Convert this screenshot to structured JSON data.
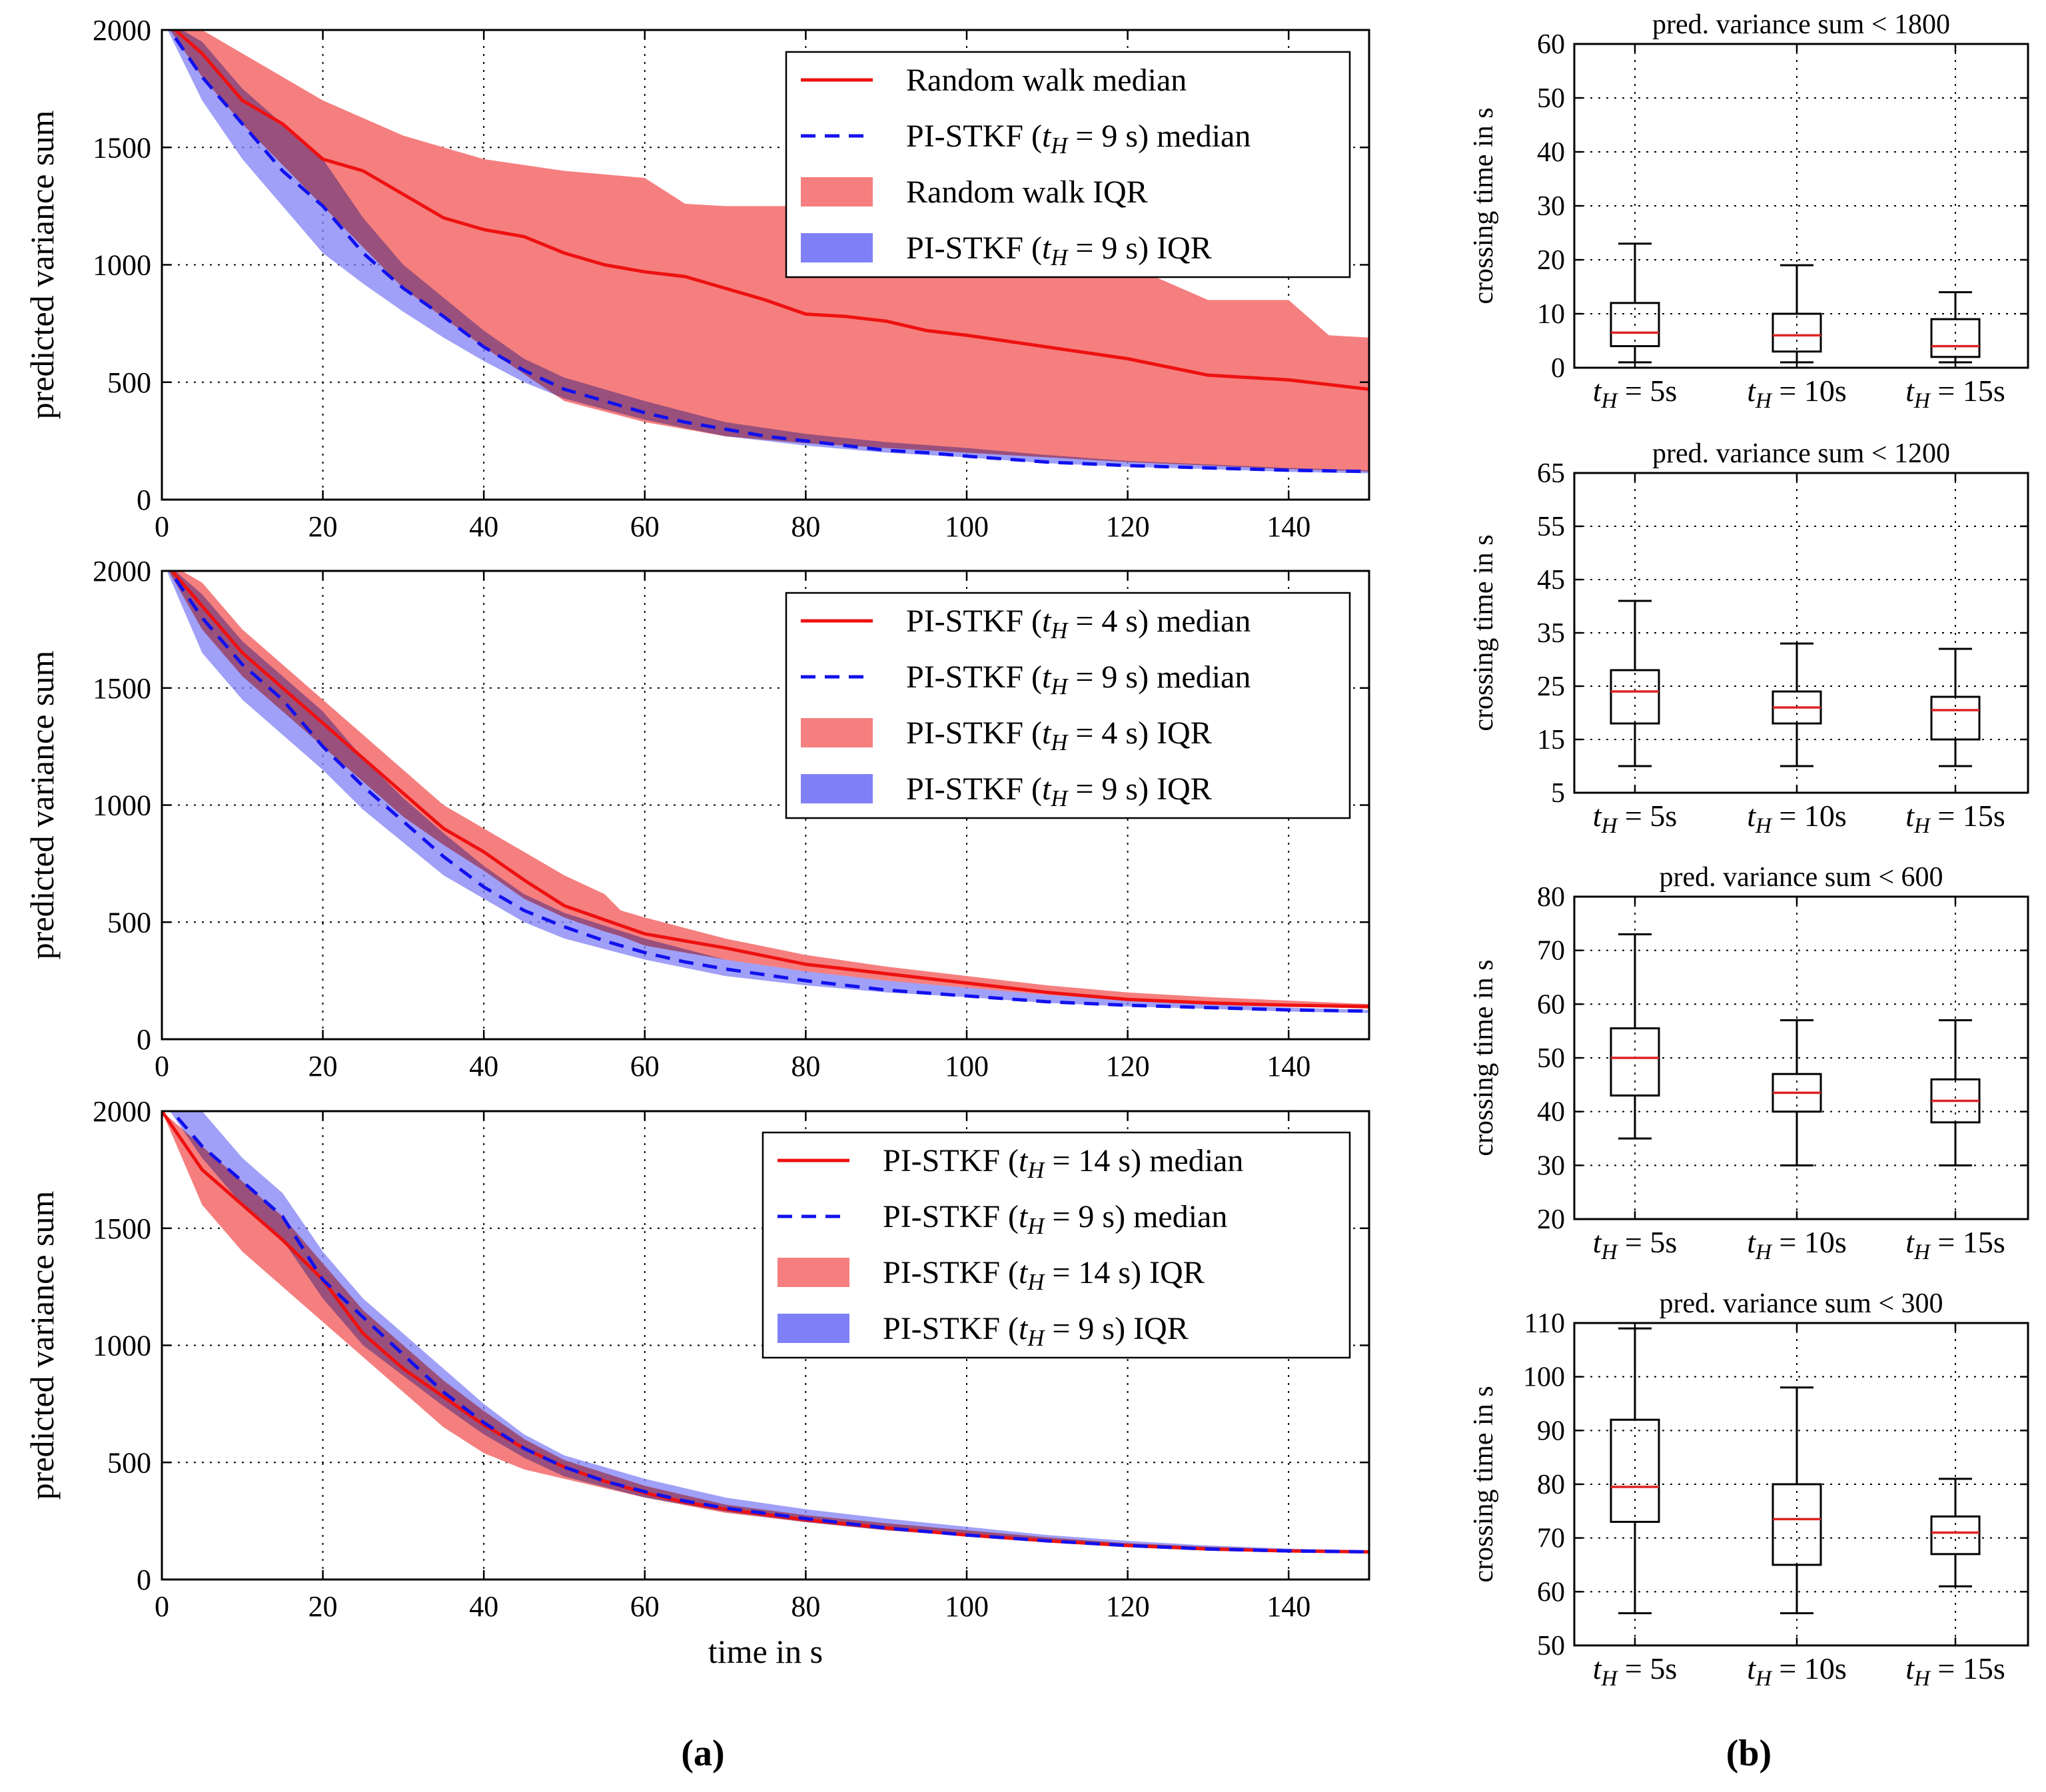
{
  "colors": {
    "red": "#ee1111",
    "blue": "#1111ee",
    "red_fill": "#f57f7f",
    "blue_fill": "#8080f6",
    "overlap": "#a26fb6",
    "box_median": "#dd2222"
  },
  "panel_a_label": "(a)",
  "panel_b_label": "(b)",
  "chart_data": [
    {
      "type": "line",
      "id": "a1",
      "xlabel": "",
      "ylabel": "predicted variance sum",
      "xlim": [
        0,
        150
      ],
      "ylim": [
        0,
        2000
      ],
      "xticks": [
        "0",
        "20",
        "40",
        "60",
        "80",
        "100",
        "120",
        "140"
      ],
      "yticks": [
        "0",
        "500",
        "1000",
        "1500",
        "2000"
      ],
      "legend": [
        "Random walk median",
        "PI-STKF (t_H = 9 s) median",
        "Random walk IQR",
        "PI-STKF (t_H = 9 s) IQR"
      ],
      "series": [
        {
          "name": "Random walk median",
          "style": "solid-red",
          "x": [
            0,
            5,
            10,
            15,
            20,
            25,
            30,
            35,
            40,
            45,
            50,
            55,
            60,
            65,
            70,
            75,
            80,
            85,
            90,
            95,
            100,
            110,
            120,
            130,
            140,
            150
          ],
          "y": [
            2050,
            1900,
            1700,
            1600,
            1450,
            1400,
            1300,
            1200,
            1150,
            1120,
            1050,
            1000,
            970,
            950,
            900,
            850,
            790,
            780,
            760,
            720,
            700,
            650,
            600,
            530,
            510,
            470
          ]
        },
        {
          "name": "PI-STKF (t_H = 9 s) median",
          "style": "dashed-blue",
          "x": [
            0,
            5,
            10,
            15,
            20,
            25,
            30,
            35,
            40,
            45,
            50,
            55,
            60,
            65,
            70,
            75,
            80,
            85,
            90,
            95,
            100,
            110,
            120,
            130,
            140,
            150
          ],
          "y": [
            2050,
            1800,
            1600,
            1400,
            1250,
            1050,
            900,
            780,
            650,
            550,
            470,
            420,
            370,
            330,
            300,
            270,
            250,
            230,
            210,
            200,
            185,
            160,
            145,
            135,
            125,
            120
          ]
        }
      ],
      "bands": [
        {
          "name": "Random walk IQR",
          "x": [
            0,
            5,
            10,
            20,
            30,
            40,
            50,
            60,
            65,
            70,
            80,
            90,
            100,
            110,
            120,
            130,
            140,
            145,
            150
          ],
          "upper": [
            2050,
            2000,
            1900,
            1700,
            1550,
            1450,
            1400,
            1370,
            1260,
            1250,
            1250,
            1210,
            1170,
            1120,
            1000,
            850,
            850,
            700,
            690
          ],
          "lower": [
            2050,
            1800,
            1600,
            1250,
            900,
            650,
            420,
            330,
            300,
            270,
            240,
            220,
            200,
            180,
            160,
            145,
            130,
            125,
            120
          ]
        },
        {
          "name": "PI-STKF (t_H = 9 s) IQR",
          "x": [
            0,
            5,
            10,
            15,
            20,
            25,
            30,
            35,
            40,
            45,
            50,
            60,
            70,
            80,
            90,
            100,
            110,
            120,
            130,
            140,
            150
          ],
          "upper": [
            2050,
            1950,
            1750,
            1600,
            1450,
            1200,
            1000,
            860,
            720,
            600,
            520,
            420,
            330,
            280,
            245,
            220,
            190,
            165,
            150,
            135,
            125
          ],
          "lower": [
            2050,
            1700,
            1450,
            1250,
            1050,
            920,
            800,
            690,
            590,
            500,
            430,
            340,
            270,
            230,
            200,
            180,
            155,
            140,
            130,
            118,
            112
          ]
        }
      ]
    },
    {
      "type": "line",
      "id": "a2",
      "xlabel": "",
      "ylabel": "predicted variance sum",
      "xlim": [
        0,
        150
      ],
      "ylim": [
        0,
        2000
      ],
      "xticks": [
        "0",
        "20",
        "40",
        "60",
        "80",
        "100",
        "120",
        "140"
      ],
      "yticks": [
        "0",
        "500",
        "1000",
        "1500",
        "2000"
      ],
      "legend": [
        "PI-STKF (t_H = 4 s) median",
        "PI-STKF (t_H = 9 s) median",
        "PI-STKF (t_H = 4 s) IQR",
        "PI-STKF (t_H = 9 s) IQR"
      ],
      "series": [
        {
          "name": "PI-STKF (t_H = 4 s) median",
          "style": "solid-red",
          "x": [
            0,
            5,
            10,
            15,
            20,
            25,
            30,
            35,
            40,
            45,
            50,
            55,
            60,
            65,
            70,
            80,
            90,
            100,
            110,
            120,
            130,
            140,
            150
          ],
          "y": [
            2050,
            1850,
            1650,
            1500,
            1350,
            1200,
            1050,
            900,
            800,
            680,
            570,
            510,
            450,
            420,
            390,
            320,
            280,
            240,
            200,
            170,
            155,
            145,
            140
          ]
        },
        {
          "name": "PI-STKF (t_H = 9 s) median",
          "style": "dashed-blue",
          "x": [
            0,
            5,
            10,
            15,
            20,
            25,
            30,
            35,
            40,
            45,
            50,
            55,
            60,
            65,
            70,
            80,
            90,
            100,
            110,
            120,
            130,
            140,
            150
          ],
          "y": [
            2050,
            1800,
            1600,
            1450,
            1250,
            1080,
            930,
            780,
            650,
            550,
            480,
            420,
            370,
            330,
            300,
            250,
            210,
            185,
            160,
            145,
            135,
            125,
            120
          ]
        }
      ],
      "bands": [
        {
          "name": "PI-STKF (t_H = 4 s) IQR",
          "x": [
            0,
            5,
            10,
            15,
            20,
            25,
            30,
            35,
            40,
            45,
            50,
            55,
            57,
            60,
            70,
            80,
            90,
            100,
            110,
            120,
            130,
            140,
            150
          ],
          "upper": [
            2050,
            1950,
            1750,
            1600,
            1450,
            1300,
            1150,
            1000,
            900,
            800,
            700,
            620,
            550,
            520,
            430,
            360,
            310,
            270,
            230,
            200,
            180,
            165,
            150
          ],
          "lower": [
            2050,
            1750,
            1550,
            1400,
            1250,
            1100,
            950,
            830,
            720,
            600,
            520,
            460,
            440,
            400,
            340,
            290,
            250,
            220,
            190,
            165,
            150,
            140,
            130
          ]
        },
        {
          "name": "PI-STKF (t_H = 9 s) IQR",
          "x": [
            0,
            5,
            10,
            15,
            20,
            25,
            30,
            35,
            40,
            45,
            50,
            60,
            70,
            80,
            90,
            100,
            110,
            120,
            130,
            140,
            150
          ],
          "upper": [
            2050,
            1900,
            1700,
            1550,
            1400,
            1200,
            1030,
            880,
            740,
            620,
            540,
            430,
            340,
            290,
            250,
            220,
            190,
            165,
            150,
            135,
            125
          ],
          "lower": [
            2050,
            1650,
            1450,
            1300,
            1150,
            980,
            840,
            700,
            600,
            500,
            430,
            340,
            270,
            230,
            200,
            180,
            155,
            140,
            130,
            118,
            112
          ]
        }
      ]
    },
    {
      "type": "line",
      "id": "a3",
      "xlabel": "time in s",
      "ylabel": "predicted variance sum",
      "xlim": [
        0,
        150
      ],
      "ylim": [
        0,
        2000
      ],
      "xticks": [
        "0",
        "20",
        "40",
        "60",
        "80",
        "100",
        "120",
        "140"
      ],
      "yticks": [
        "0",
        "500",
        "1000",
        "1500",
        "2000"
      ],
      "legend": [
        "PI-STKF (t_H = 14 s) median",
        "PI-STKF (t_H = 9 s) median",
        "PI-STKF (t_H = 14 s) IQR",
        "PI-STKF (t_H = 9 s) IQR"
      ],
      "series": [
        {
          "name": "PI-STKF (t_H = 14 s) median",
          "style": "solid-red",
          "x": [
            0,
            5,
            10,
            15,
            20,
            25,
            30,
            35,
            40,
            45,
            50,
            55,
            60,
            65,
            70,
            80,
            90,
            100,
            110,
            120,
            130,
            140,
            150
          ],
          "y": [
            2000,
            1750,
            1600,
            1450,
            1280,
            1050,
            900,
            780,
            660,
            560,
            480,
            420,
            370,
            330,
            300,
            255,
            220,
            190,
            165,
            145,
            130,
            122,
            118
          ]
        },
        {
          "name": "PI-STKF (t_H = 9 s) median",
          "style": "dashed-blue",
          "x": [
            0,
            5,
            10,
            15,
            20,
            25,
            30,
            35,
            40,
            45,
            50,
            55,
            60,
            65,
            70,
            80,
            90,
            100,
            110,
            120,
            130,
            140,
            150
          ],
          "y": [
            2050,
            1850,
            1700,
            1550,
            1280,
            1120,
            960,
            800,
            670,
            560,
            480,
            420,
            375,
            335,
            305,
            260,
            220,
            190,
            165,
            145,
            130,
            122,
            118
          ]
        }
      ],
      "bands": [
        {
          "name": "PI-STKF (t_H = 14 s) IQR",
          "x": [
            0,
            5,
            10,
            15,
            20,
            25,
            30,
            35,
            40,
            45,
            50,
            60,
            70,
            80,
            90,
            100,
            110,
            120,
            130,
            140,
            150
          ],
          "upper": [
            2000,
            1850,
            1700,
            1550,
            1350,
            1150,
            1000,
            850,
            720,
            600,
            510,
            400,
            320,
            275,
            240,
            210,
            180,
            155,
            140,
            128,
            122
          ],
          "lower": [
            2000,
            1600,
            1400,
            1250,
            1100,
            950,
            800,
            650,
            540,
            470,
            430,
            350,
            285,
            245,
            210,
            185,
            160,
            140,
            128,
            118,
            114
          ]
        },
        {
          "name": "PI-STKF (t_H = 9 s) IQR",
          "x": [
            0,
            5,
            10,
            15,
            20,
            25,
            30,
            35,
            40,
            45,
            50,
            60,
            70,
            80,
            90,
            100,
            110,
            120,
            130,
            140,
            150
          ],
          "upper": [
            2050,
            2000,
            1800,
            1650,
            1400,
            1200,
            1050,
            900,
            750,
            620,
            530,
            430,
            350,
            300,
            260,
            225,
            190,
            165,
            145,
            132,
            124
          ],
          "lower": [
            2050,
            1800,
            1600,
            1450,
            1200,
            1000,
            870,
            740,
            620,
            520,
            440,
            350,
            290,
            245,
            210,
            185,
            160,
            140,
            128,
            118,
            114
          ]
        }
      ]
    },
    {
      "type": "box",
      "id": "b1",
      "title": "pred. variance sum < 1800",
      "ylabel": "crossing time in s",
      "ylim": [
        0,
        60
      ],
      "yticks": [
        "0",
        "10",
        "20",
        "30",
        "40",
        "50",
        "60"
      ],
      "categories": [
        "t_H = 5s",
        "t_H = 10s",
        "t_H = 15s"
      ],
      "boxes": [
        {
          "min": 1,
          "q1": 4,
          "median": 6.5,
          "q3": 12,
          "max": 23
        },
        {
          "min": 1,
          "q1": 3,
          "median": 6,
          "q3": 10,
          "max": 19
        },
        {
          "min": 1,
          "q1": 2,
          "median": 4,
          "q3": 9,
          "max": 14
        }
      ]
    },
    {
      "type": "box",
      "id": "b2",
      "title": "pred. variance sum < 1200",
      "ylabel": "crossing time in s",
      "ylim": [
        5,
        65
      ],
      "yticks": [
        "5",
        "15",
        "25",
        "35",
        "45",
        "55",
        "65"
      ],
      "categories": [
        "t_H = 5s",
        "t_H = 10s",
        "t_H = 15s"
      ],
      "boxes": [
        {
          "min": 10,
          "q1": 18,
          "median": 24,
          "q3": 28,
          "max": 41
        },
        {
          "min": 10,
          "q1": 18,
          "median": 21,
          "q3": 24,
          "max": 33
        },
        {
          "min": 10,
          "q1": 15,
          "median": 20.5,
          "q3": 23,
          "max": 32
        }
      ]
    },
    {
      "type": "box",
      "id": "b3",
      "title": "pred. variance sum < 600",
      "ylabel": "crossing time in s",
      "ylim": [
        20,
        80
      ],
      "yticks": [
        "20",
        "30",
        "40",
        "50",
        "60",
        "70",
        "80"
      ],
      "categories": [
        "t_H = 5s",
        "t_H = 10s",
        "t_H = 15s"
      ],
      "boxes": [
        {
          "min": 35,
          "q1": 43,
          "median": 50,
          "q3": 55.5,
          "max": 73
        },
        {
          "min": 30,
          "q1": 40,
          "median": 43.5,
          "q3": 47,
          "max": 57
        },
        {
          "min": 30,
          "q1": 38,
          "median": 42,
          "q3": 46,
          "max": 57
        }
      ]
    },
    {
      "type": "box",
      "id": "b4",
      "title": "pred. variance sum < 300",
      "ylabel": "crossing time in s",
      "ylim": [
        50,
        110
      ],
      "yticks": [
        "50",
        "60",
        "70",
        "80",
        "90",
        "100",
        "110"
      ],
      "categories": [
        "t_H = 5s",
        "t_H = 10s",
        "t_H = 15s"
      ],
      "boxes": [
        {
          "min": 56,
          "q1": 73,
          "median": 79.5,
          "q3": 92,
          "max": 109
        },
        {
          "min": 56,
          "q1": 65,
          "median": 73.5,
          "q3": 80,
          "max": 98
        },
        {
          "min": 61,
          "q1": 67,
          "median": 71,
          "q3": 74,
          "max": 81
        }
      ]
    }
  ]
}
